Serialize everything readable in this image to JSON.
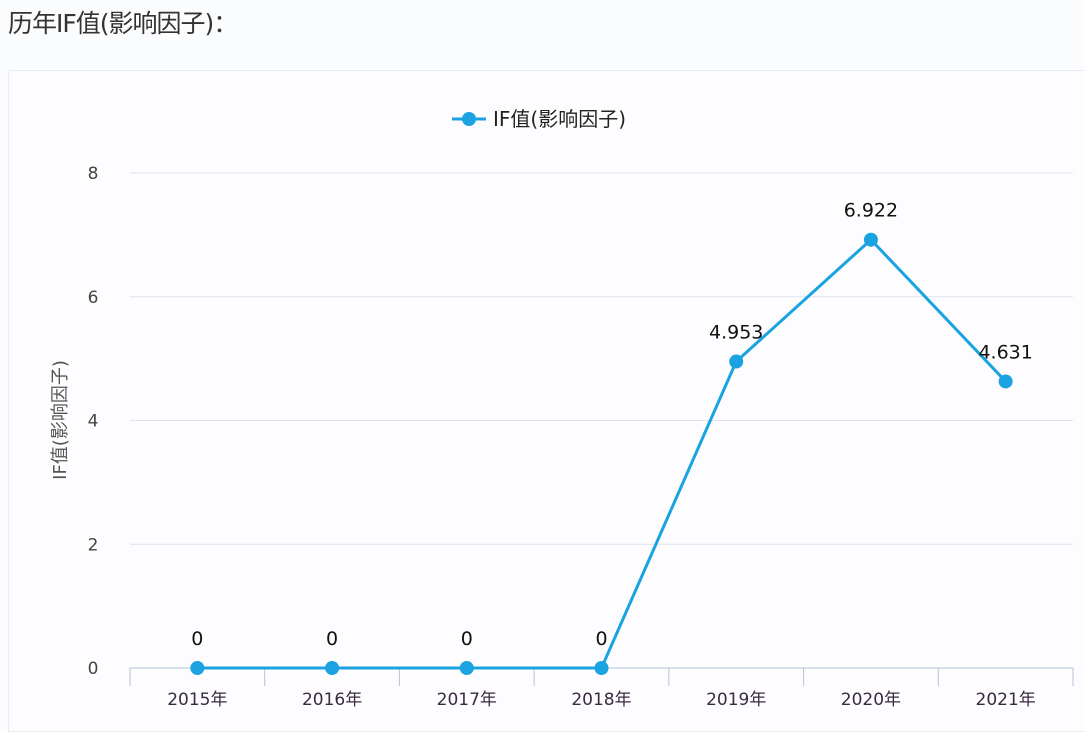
{
  "page": {
    "title": "历年IF值(影响因子)："
  },
  "chart_data": {
    "type": "line",
    "title": "",
    "xlabel": "",
    "ylabel": "IF值(影响因子)",
    "categories": [
      "2015年",
      "2016年",
      "2017年",
      "2018年",
      "2019年",
      "2020年",
      "2021年"
    ],
    "series": [
      {
        "name": "IF值(影响因子)",
        "values": [
          0,
          0,
          0,
          0,
          4.953,
          6.922,
          4.631
        ],
        "labels": [
          "0",
          "0",
          "0",
          "0",
          "4.953",
          "6.922",
          "4.631"
        ],
        "color": "#1aa3e0"
      }
    ],
    "ylim": [
      0,
      8
    ],
    "yticks": [
      0,
      2,
      4,
      6,
      8
    ],
    "grid": true,
    "legend": "top-center"
  }
}
